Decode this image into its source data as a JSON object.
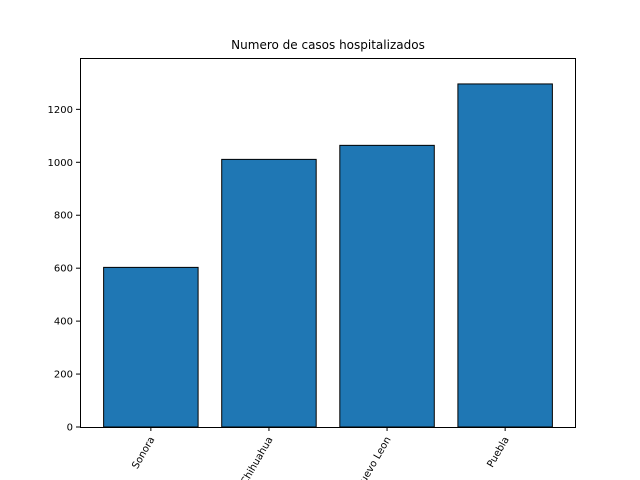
{
  "chart_data": {
    "type": "bar",
    "title": "Numero de casos hospitalizados",
    "xlabel": "",
    "ylabel": "",
    "categories": [
      "Sonora",
      "Chihuahua",
      "Nuevo Leon",
      "Puebla"
    ],
    "values": [
      603,
      1011,
      1064,
      1296
    ],
    "ylim": [
      0,
      1394
    ],
    "yticks": [
      0,
      200,
      400,
      600,
      800,
      1000,
      1200
    ],
    "bar_color": "#1f77b4",
    "edge_color": "#000000",
    "grid": false,
    "legend": "none",
    "xtick_rotation": "60"
  }
}
